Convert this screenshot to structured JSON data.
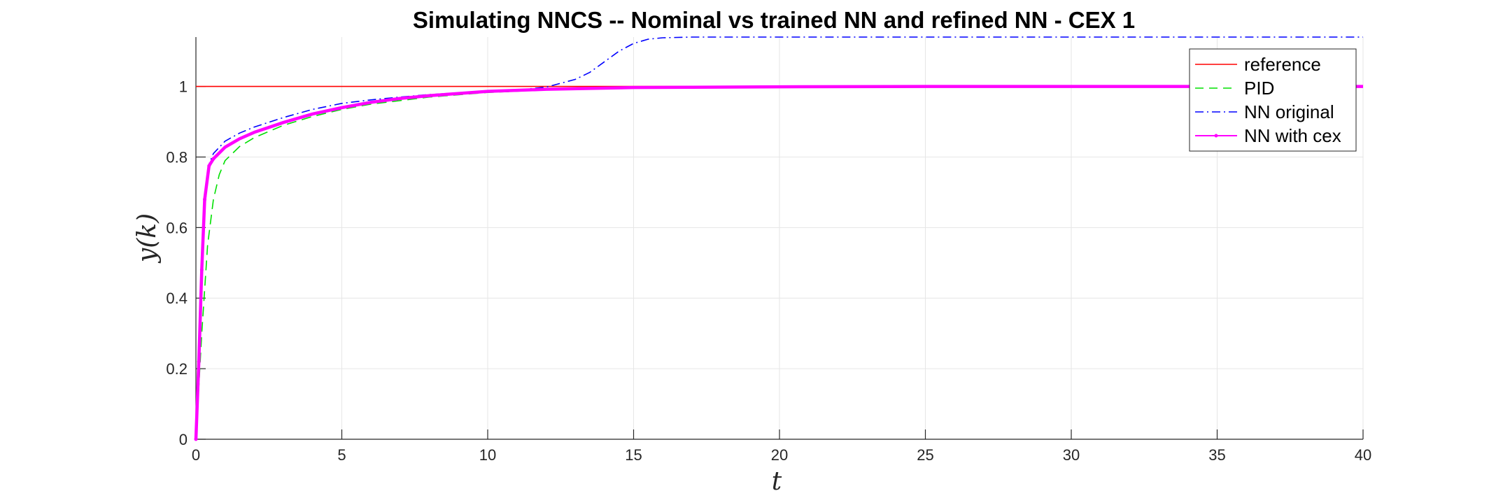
{
  "chart_data": {
    "type": "line",
    "title": "Simulating NNCS -- Nominal vs trained NN and refined NN - CEX 1",
    "xlabel": "t",
    "ylabel": "y(k)",
    "xlim": [
      0,
      40
    ],
    "ylim": [
      0,
      1.14
    ],
    "xticks": [
      0,
      5,
      10,
      15,
      20,
      25,
      30,
      35,
      40
    ],
    "yticks": [
      0,
      0.2,
      0.4,
      0.6,
      0.8,
      1
    ],
    "xtick_labels": [
      "0",
      "5",
      "10",
      "15",
      "20",
      "25",
      "30",
      "35",
      "40"
    ],
    "ytick_labels": [
      "0",
      "0.2",
      "0.4",
      "0.6",
      "0.8",
      "1"
    ],
    "grid": true,
    "legend_position": "top-right",
    "series": [
      {
        "name": "reference",
        "color": "#ff0000",
        "style": "solid",
        "x": [
          0,
          40
        ],
        "y": [
          1,
          1
        ]
      },
      {
        "name": "PID",
        "color": "#00e000",
        "style": "dashed",
        "x": [
          0,
          0.2,
          0.4,
          0.6,
          0.8,
          1.0,
          1.5,
          2,
          3,
          4,
          5,
          6,
          7,
          8,
          10,
          12,
          15,
          20,
          25,
          30,
          40
        ],
        "y": [
          0,
          0.3,
          0.55,
          0.68,
          0.75,
          0.79,
          0.83,
          0.855,
          0.89,
          0.915,
          0.935,
          0.95,
          0.96,
          0.97,
          0.983,
          0.99,
          0.996,
          0.999,
          1.0,
          1.0,
          1.0
        ]
      },
      {
        "name": "NN original",
        "color": "#0000ff",
        "style": "dashdot",
        "x": [
          0,
          0.15,
          0.3,
          0.45,
          0.6,
          1.0,
          1.5,
          2,
          3,
          4,
          5,
          6,
          7,
          8,
          9,
          10,
          11,
          12,
          13,
          13.5,
          14,
          14.5,
          15,
          15.5,
          16,
          17,
          20,
          25,
          30,
          35,
          40
        ],
        "y": [
          0,
          0.4,
          0.65,
          0.78,
          0.81,
          0.845,
          0.868,
          0.885,
          0.912,
          0.935,
          0.952,
          0.962,
          0.97,
          0.977,
          0.982,
          0.986,
          0.99,
          0.998,
          1.02,
          1.04,
          1.07,
          1.1,
          1.122,
          1.134,
          1.138,
          1.14,
          1.14,
          1.14,
          1.14,
          1.14,
          1.14
        ]
      },
      {
        "name": "NN with cex",
        "color": "#ff00ff",
        "style": "thick",
        "x": [
          0,
          0.1,
          0.2,
          0.3,
          0.45,
          0.6,
          1.0,
          1.5,
          2,
          3,
          4,
          5,
          6,
          7,
          8,
          10,
          12,
          15,
          20,
          25,
          30,
          35,
          40
        ],
        "y": [
          0,
          0.22,
          0.48,
          0.68,
          0.775,
          0.795,
          0.828,
          0.852,
          0.87,
          0.898,
          0.922,
          0.94,
          0.955,
          0.966,
          0.974,
          0.986,
          0.992,
          0.997,
          0.999,
          1.0,
          1.0,
          1.0,
          1.0
        ]
      }
    ]
  }
}
